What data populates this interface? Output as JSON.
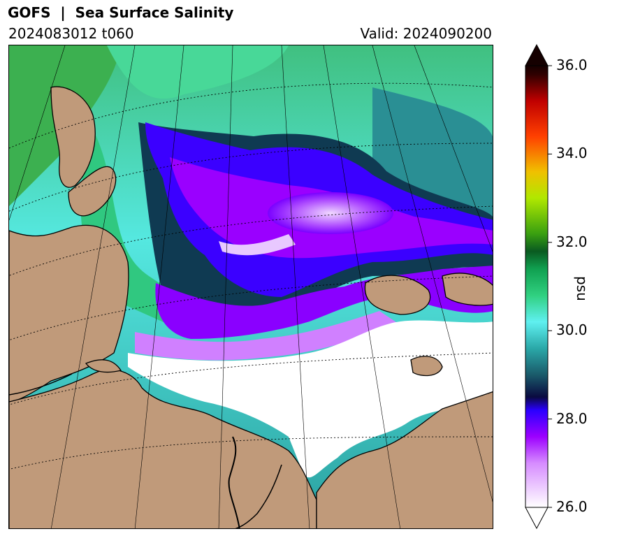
{
  "header": {
    "title": "GOFS  |  Sea Surface Salinity",
    "run": "2024083012 t060",
    "valid": "Valid: 2024090200"
  },
  "colorbar": {
    "unit": "psu",
    "range": [
      26.0,
      36.0
    ],
    "ticks": [
      "36.0",
      "34.0",
      "32.0",
      "30.0",
      "28.0",
      "26.0"
    ],
    "extend": "both",
    "stops": [
      {
        "value": 26.0,
        "color": "#ffffff"
      },
      {
        "value": 27.0,
        "color": "#d68cff"
      },
      {
        "value": 27.6,
        "color": "#9c00ff"
      },
      {
        "value": 28.2,
        "color": "#2a00ff"
      },
      {
        "value": 28.5,
        "color": "#0a0a40"
      },
      {
        "value": 29.0,
        "color": "#1a5a6a"
      },
      {
        "value": 29.6,
        "color": "#2aa8a8"
      },
      {
        "value": 30.2,
        "color": "#5ff0f0"
      },
      {
        "value": 30.8,
        "color": "#30d080"
      },
      {
        "value": 31.4,
        "color": "#10a050"
      },
      {
        "value": 31.8,
        "color": "#0a5a20"
      },
      {
        "value": 32.2,
        "color": "#3aa010"
      },
      {
        "value": 33.0,
        "color": "#b0e800"
      },
      {
        "value": 33.6,
        "color": "#f0c000"
      },
      {
        "value": 34.4,
        "color": "#ff4000"
      },
      {
        "value": 35.2,
        "color": "#c00000"
      },
      {
        "value": 35.8,
        "color": "#300000"
      },
      {
        "value": 36.0,
        "color": "#150000"
      }
    ]
  },
  "map": {
    "land_color": "#c09a7a",
    "ice_or_fresh_color": "#ffffff"
  }
}
